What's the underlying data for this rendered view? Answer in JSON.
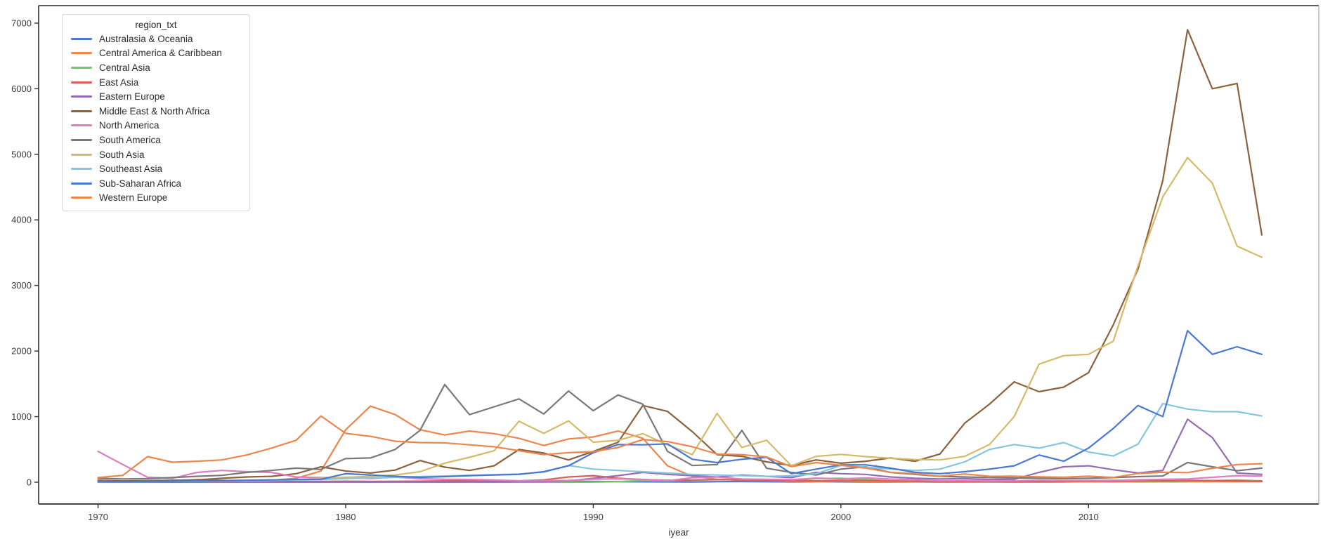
{
  "chart_data": {
    "type": "line",
    "title": "",
    "xlabel": "iyear",
    "legend_title": "region_txt",
    "legend_position": "upper left",
    "grid": false,
    "x_ticks": [
      1970,
      1980,
      1990,
      2000,
      2010
    ],
    "y_ticks": [
      0,
      1000,
      2000,
      3000,
      4000,
      5000,
      6000,
      7000
    ],
    "xlim": [
      1967.6,
      2019.3
    ],
    "ylim": [
      -332,
      7267
    ],
    "x": [
      1970,
      1971,
      1972,
      1973,
      1974,
      1975,
      1976,
      1977,
      1978,
      1979,
      1980,
      1981,
      1982,
      1983,
      1984,
      1985,
      1986,
      1987,
      1988,
      1989,
      1990,
      1991,
      1992,
      1993,
      1994,
      1995,
      1996,
      1997,
      1998,
      1999,
      2000,
      2001,
      2002,
      2003,
      2004,
      2005,
      2006,
      2007,
      2008,
      2009,
      2010,
      2011,
      2012,
      2013,
      2014,
      2015,
      2016,
      2017
    ],
    "series": [
      {
        "name": "Australasia & Oceania",
        "color": "#4878d0",
        "values": [
          5,
          8,
          3,
          4,
          4,
          10,
          5,
          10,
          6,
          4,
          12,
          8,
          6,
          7,
          4,
          6,
          5,
          5,
          6,
          10,
          12,
          8,
          6,
          5,
          4,
          8,
          10,
          7,
          5,
          8,
          6,
          4,
          3,
          5,
          2,
          3,
          4,
          2,
          3,
          5,
          8,
          6,
          10,
          6,
          8,
          12,
          15,
          10
        ]
      },
      {
        "name": "Central America & Caribbean",
        "color": "#ee854a",
        "values": [
          10,
          15,
          12,
          18,
          20,
          25,
          22,
          30,
          60,
          170,
          800,
          1160,
          1030,
          800,
          720,
          780,
          740,
          670,
          560,
          660,
          690,
          780,
          670,
          250,
          90,
          45,
          30,
          25,
          15,
          12,
          18,
          10,
          8,
          6,
          5,
          4,
          6,
          5,
          8,
          10,
          6,
          8,
          5,
          6,
          8,
          10,
          8,
          12
        ]
      },
      {
        "name": "Central Asia",
        "color": "#6acc64",
        "values": [
          0,
          0,
          0,
          0,
          0,
          0,
          0,
          0,
          0,
          0,
          0,
          0,
          0,
          0,
          0,
          0,
          0,
          0,
          0,
          0,
          2,
          8,
          25,
          20,
          30,
          42,
          35,
          42,
          25,
          55,
          60,
          42,
          20,
          15,
          10,
          14,
          10,
          12,
          14,
          20,
          24,
          30,
          20,
          15,
          18,
          24,
          34,
          20
        ]
      },
      {
        "name": "East Asia",
        "color": "#d65f5f",
        "values": [
          25,
          15,
          20,
          12,
          40,
          28,
          18,
          15,
          10,
          12,
          15,
          12,
          14,
          16,
          20,
          24,
          28,
          20,
          35,
          80,
          100,
          60,
          42,
          30,
          34,
          38,
          35,
          30,
          24,
          20,
          28,
          24,
          20,
          15,
          12,
          12,
          14,
          12,
          12,
          14,
          18,
          15,
          24,
          20,
          28,
          24,
          20,
          16
        ]
      },
      {
        "name": "Eastern Europe",
        "color": "#956cb4",
        "values": [
          2,
          1,
          2,
          1,
          2,
          3,
          2,
          3,
          4,
          3,
          5,
          4,
          6,
          5,
          4,
          6,
          5,
          8,
          10,
          20,
          60,
          100,
          150,
          120,
          100,
          80,
          110,
          90,
          70,
          150,
          130,
          120,
          80,
          60,
          50,
          55,
          40,
          45,
          150,
          235,
          250,
          190,
          140,
          180,
          960,
          680,
          140,
          120
        ]
      },
      {
        "name": "Middle East & North Africa",
        "color": "#8c613c",
        "values": [
          30,
          20,
          25,
          30,
          35,
          60,
          80,
          90,
          130,
          235,
          170,
          140,
          185,
          330,
          230,
          180,
          250,
          500,
          445,
          340,
          470,
          610,
          1170,
          1080,
          770,
          420,
          395,
          310,
          255,
          340,
          290,
          320,
          370,
          320,
          430,
          900,
          1190,
          1530,
          1380,
          1450,
          1670,
          2400,
          3250,
          4600,
          6900,
          6000,
          6080,
          3770
        ]
      },
      {
        "name": "North America",
        "color": "#dc7ec0",
        "values": [
          470,
          270,
          75,
          60,
          150,
          180,
          160,
          150,
          80,
          70,
          66,
          58,
          77,
          54,
          44,
          41,
          34,
          21,
          22,
          27,
          47,
          52,
          41,
          23,
          68,
          80,
          48,
          45,
          38,
          63,
          51,
          65,
          48,
          39,
          21,
          26,
          21,
          21,
          30,
          26,
          27,
          26,
          37,
          44,
          50,
          75,
          100,
          95
        ]
      },
      {
        "name": "South America",
        "color": "#797979",
        "values": [
          60,
          50,
          55,
          70,
          90,
          105,
          150,
          180,
          215,
          195,
          360,
          370,
          500,
          790,
          1490,
          1030,
          1150,
          1270,
          1040,
          1390,
          1090,
          1330,
          1190,
          470,
          255,
          270,
          790,
          213,
          150,
          110,
          200,
          235,
          150,
          120,
          90,
          80,
          70,
          65,
          60,
          55,
          60,
          70,
          85,
          95,
          300,
          235,
          175,
          215
        ]
      },
      {
        "name": "South Asia",
        "color": "#d5bb67",
        "values": [
          5,
          8,
          10,
          12,
          15,
          20,
          25,
          30,
          40,
          60,
          75,
          90,
          110,
          160,
          290,
          380,
          480,
          930,
          745,
          935,
          610,
          640,
          740,
          570,
          420,
          1050,
          530,
          640,
          250,
          395,
          425,
          390,
          365,
          345,
          340,
          395,
          575,
          1000,
          1800,
          1930,
          1950,
          2150,
          3300,
          4350,
          4950,
          4560,
          3600,
          3430
        ]
      },
      {
        "name": "Southeast Asia",
        "color": "#82c6e2",
        "values": [
          12,
          8,
          10,
          12,
          15,
          25,
          20,
          28,
          35,
          42,
          55,
          65,
          75,
          85,
          95,
          105,
          115,
          125,
          155,
          255,
          200,
          180,
          160,
          140,
          120,
          110,
          100,
          90,
          96,
          130,
          255,
          230,
          200,
          180,
          200,
          310,
          500,
          575,
          520,
          605,
          460,
          400,
          580,
          1200,
          1115,
          1075,
          1075,
          1010
        ]
      },
      {
        "name": "Sub-Saharan Africa",
        "color": "#4878d0",
        "values": [
          8,
          10,
          12,
          15,
          20,
          25,
          30,
          35,
          40,
          45,
          130,
          110,
          90,
          75,
          85,
          100,
          110,
          120,
          160,
          250,
          450,
          575,
          570,
          585,
          350,
          300,
          350,
          380,
          130,
          200,
          265,
          265,
          215,
          150,
          130,
          160,
          200,
          250,
          415,
          320,
          520,
          820,
          1170,
          1000,
          2310,
          1950,
          2065,
          1950
        ]
      },
      {
        "name": "Western Europe",
        "color": "#ee854a",
        "values": [
          70,
          105,
          390,
          305,
          320,
          340,
          415,
          520,
          640,
          1010,
          745,
          700,
          625,
          605,
          600,
          570,
          540,
          480,
          420,
          450,
          465,
          530,
          650,
          620,
          540,
          430,
          420,
          385,
          237,
          300,
          260,
          215,
          152,
          130,
          91,
          126,
          90,
          92,
          82,
          76,
          92,
          73,
          133,
          152,
          146,
          212,
          269,
          282
        ]
      }
    ]
  }
}
